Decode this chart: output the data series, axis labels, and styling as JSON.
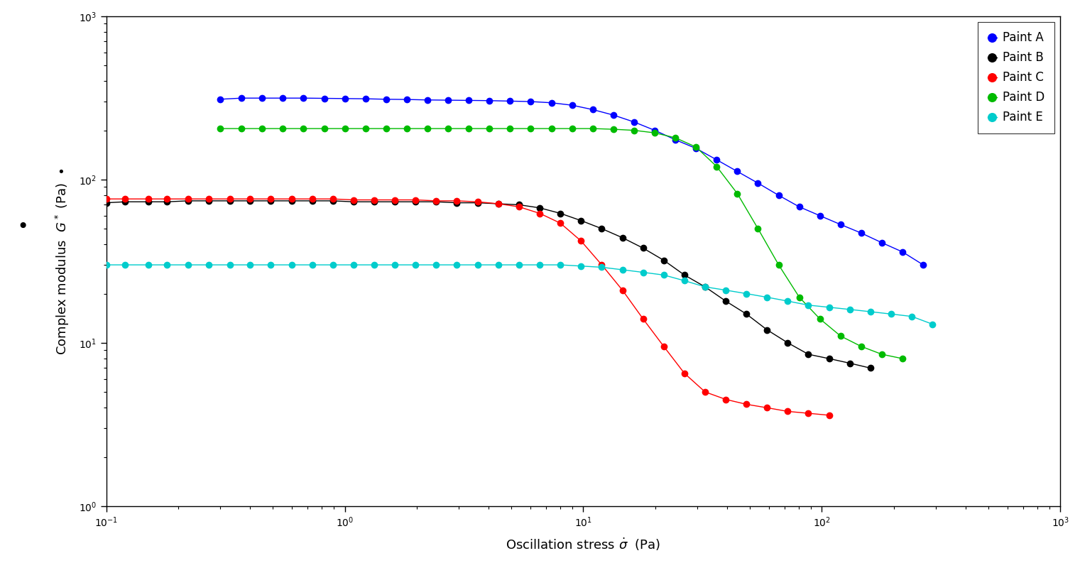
{
  "xlim": [
    0.1,
    1000
  ],
  "ylim": [
    1,
    1000
  ],
  "legend_labels": [
    "Paint A",
    "Paint B",
    "Paint C",
    "Paint D",
    "Paint E"
  ],
  "colors": [
    "#0000FF",
    "#000000",
    "#FF0000",
    "#00BB00",
    "#00CCCC"
  ],
  "paint_A": {
    "x": [
      0.3,
      0.37,
      0.45,
      0.55,
      0.67,
      0.82,
      1.0,
      1.22,
      1.49,
      1.82,
      2.22,
      2.71,
      3.31,
      4.04,
      4.93,
      6.02,
      7.35,
      8.97,
      10.95,
      13.37,
      16.32,
      19.93,
      24.33,
      29.7,
      36.24,
      44.22,
      53.98,
      65.9,
      80.44,
      98.18,
      119.8,
      146.2,
      178.5,
      217.9,
      266.0
    ],
    "y": [
      310,
      315,
      315,
      315,
      315,
      314,
      313,
      312,
      310,
      309,
      307,
      306,
      305,
      304,
      302,
      300,
      295,
      285,
      268,
      248,
      225,
      200,
      175,
      155,
      132,
      112,
      95,
      80,
      68,
      60,
      53,
      47,
      41,
      36,
      30
    ]
  },
  "paint_B": {
    "x": [
      0.1,
      0.12,
      0.15,
      0.18,
      0.22,
      0.27,
      0.33,
      0.4,
      0.49,
      0.6,
      0.73,
      0.89,
      1.09,
      1.33,
      1.62,
      1.98,
      2.42,
      2.95,
      3.61,
      4.41,
      5.38,
      6.57,
      8.02,
      9.79,
      11.95,
      14.59,
      17.81,
      21.74,
      26.54,
      32.4,
      39.55,
      48.27,
      58.93,
      71.93,
      87.8,
      107.2,
      130.9,
      159.8
    ],
    "y": [
      72,
      73,
      73,
      73,
      74,
      74,
      74,
      74,
      74,
      74,
      74,
      74,
      73,
      73,
      73,
      73,
      73,
      72,
      72,
      71,
      70,
      67,
      62,
      56,
      50,
      44,
      38,
      32,
      26,
      22,
      18,
      15,
      12,
      10,
      8.5,
      8.0,
      7.5,
      7.0
    ]
  },
  "paint_C": {
    "x": [
      0.1,
      0.12,
      0.15,
      0.18,
      0.22,
      0.27,
      0.33,
      0.4,
      0.49,
      0.6,
      0.73,
      0.89,
      1.09,
      1.33,
      1.62,
      1.98,
      2.42,
      2.95,
      3.61,
      4.41,
      5.38,
      6.57,
      8.02,
      9.79,
      11.95,
      14.59,
      17.81,
      21.74,
      26.54,
      32.4,
      39.55,
      48.27,
      58.93,
      71.93,
      87.8,
      107.2
    ],
    "y": [
      76,
      76,
      76,
      76,
      76,
      76,
      76,
      76,
      76,
      76,
      76,
      76,
      75,
      75,
      75,
      75,
      74,
      74,
      73,
      71,
      68,
      62,
      54,
      42,
      30,
      21,
      14,
      9.5,
      6.5,
      5.0,
      4.5,
      4.2,
      4.0,
      3.8,
      3.7,
      3.6
    ]
  },
  "paint_D": {
    "x": [
      0.3,
      0.37,
      0.45,
      0.55,
      0.67,
      0.82,
      1.0,
      1.22,
      1.49,
      1.82,
      2.22,
      2.71,
      3.31,
      4.04,
      4.93,
      6.02,
      7.35,
      8.97,
      10.95,
      13.37,
      16.32,
      19.93,
      24.33,
      29.7,
      36.24,
      44.22,
      53.98,
      65.9,
      80.44,
      98.18,
      119.8,
      146.2,
      178.5,
      217.9
    ],
    "y": [
      205,
      205,
      205,
      205,
      205,
      205,
      205,
      205,
      205,
      205,
      205,
      205,
      205,
      205,
      205,
      205,
      205,
      205,
      205,
      203,
      200,
      193,
      180,
      158,
      120,
      82,
      50,
      30,
      19,
      14,
      11,
      9.5,
      8.5,
      8.0
    ]
  },
  "paint_E": {
    "x": [
      0.1,
      0.12,
      0.15,
      0.18,
      0.22,
      0.27,
      0.33,
      0.4,
      0.49,
      0.6,
      0.73,
      0.89,
      1.09,
      1.33,
      1.62,
      1.98,
      2.42,
      2.95,
      3.61,
      4.41,
      5.38,
      6.57,
      8.02,
      9.79,
      11.95,
      14.59,
      17.81,
      21.74,
      26.54,
      32.4,
      39.55,
      48.27,
      58.93,
      71.93,
      87.8,
      107.2,
      130.9,
      159.8,
      195.1,
      238.2,
      290.8
    ],
    "y": [
      30,
      30,
      30,
      30,
      30,
      30,
      30,
      30,
      30,
      30,
      30,
      30,
      30,
      30,
      30,
      30,
      30,
      30,
      30,
      30,
      30,
      30,
      30,
      29.5,
      29,
      28,
      27,
      26,
      24,
      22,
      21,
      20,
      19,
      18,
      17,
      16.5,
      16,
      15.5,
      15,
      14.5,
      13
    ]
  }
}
